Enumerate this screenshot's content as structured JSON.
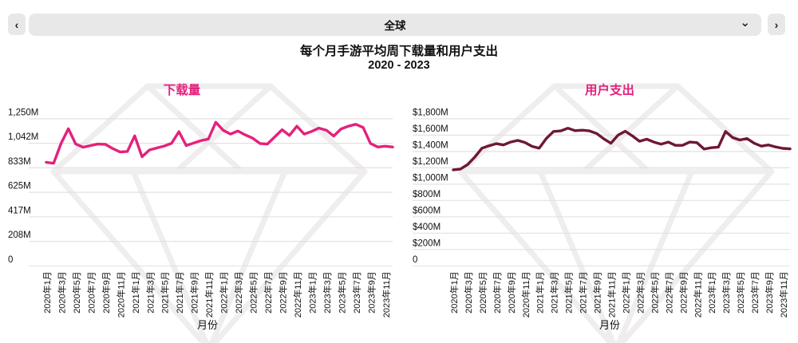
{
  "toolbar": {
    "prev_button": "‹",
    "next_button": "›",
    "region_selector_value": "全球",
    "dropdown_chevron": "⌄"
  },
  "header": {
    "title": "每个月手游平均周下载量和用户支出",
    "subtitle": "2020 - 2023"
  },
  "colors": {
    "downloads_line": "#E4217C",
    "spend_line": "#6E1837",
    "chart_title": "#E4217C",
    "gridline": "#e2e2e2",
    "watermark": "#efedee",
    "toolbar_bg": "#e8e8e8",
    "text": "#111111"
  },
  "chart_data": [
    {
      "type": "line",
      "title": "下载量",
      "xlabel": "月份",
      "unit": "M",
      "legend_position": "none",
      "grid": true,
      "ylim": [
        0,
        1250
      ],
      "ytick_labels": [
        "1,250M",
        "1,042M",
        "833M",
        "625M",
        "417M",
        "208M",
        "0"
      ],
      "ytick_values": [
        1250,
        1042,
        833,
        625,
        417,
        208,
        0
      ],
      "xtick_labels": [
        "2020年1月",
        "2020年3月",
        "2020年5月",
        "2020年7月",
        "2020年9月",
        "2020年11月",
        "2021年1月",
        "2021年3月",
        "2021年5月",
        "2021年7月",
        "2021年9月",
        "2021年11月",
        "2022年1月",
        "2022年3月",
        "2022年5月",
        "2022年7月",
        "2022年9月",
        "2022年11月",
        "2023年1月",
        "2023年3月",
        "2023年5月",
        "2023年7月",
        "2023年9月",
        "2023年11月"
      ],
      "points_per_tick": 2,
      "values": [
        880,
        872,
        1040,
        1165,
        1035,
        1008,
        1022,
        1035,
        1033,
        998,
        968,
        972,
        1105,
        927,
        985,
        1002,
        1018,
        1042,
        1140,
        1022,
        1044,
        1064,
        1078,
        1220,
        1153,
        1120,
        1146,
        1113,
        1085,
        1040,
        1035,
        1096,
        1157,
        1108,
        1187,
        1120,
        1142,
        1171,
        1153,
        1103,
        1164,
        1187,
        1203,
        1176,
        1040,
        1010,
        1017,
        1010
      ]
    },
    {
      "type": "line",
      "title": "用户支出",
      "xlabel": "月份",
      "unit": "$M",
      "legend_position": "none",
      "grid": true,
      "ylim": [
        0,
        1800
      ],
      "ytick_labels": [
        "$1,800M",
        "$1,600M",
        "$1,400M",
        "$1,200M",
        "$1,000M",
        "$800M",
        "$600M",
        "$400M",
        "$200M",
        "0"
      ],
      "ytick_values": [
        1800,
        1600,
        1400,
        1200,
        1000,
        800,
        600,
        400,
        200,
        0
      ],
      "xtick_labels": [
        "2020年1月",
        "2020年3月",
        "2020年5月",
        "2020年7月",
        "2020年9月",
        "2020年11月",
        "2021年1月",
        "2021年3月",
        "2021年5月",
        "2021年7月",
        "2021年9月",
        "2021年11月",
        "2022年1月",
        "2022年3月",
        "2022年5月",
        "2022年7月",
        "2022年9月",
        "2022年11月",
        "2023年1月",
        "2023年3月",
        "2023年5月",
        "2023年7月",
        "2023年9月",
        "2023年11月"
      ],
      "points_per_tick": 2,
      "values": [
        1175,
        1185,
        1240,
        1330,
        1440,
        1470,
        1495,
        1480,
        1515,
        1535,
        1510,
        1462,
        1440,
        1560,
        1645,
        1652,
        1685,
        1655,
        1660,
        1652,
        1620,
        1555,
        1500,
        1600,
        1648,
        1590,
        1525,
        1550,
        1515,
        1490,
        1515,
        1475,
        1475,
        1515,
        1508,
        1430,
        1446,
        1453,
        1645,
        1570,
        1540,
        1558,
        1500,
        1465,
        1480,
        1455,
        1438,
        1432
      ]
    }
  ]
}
